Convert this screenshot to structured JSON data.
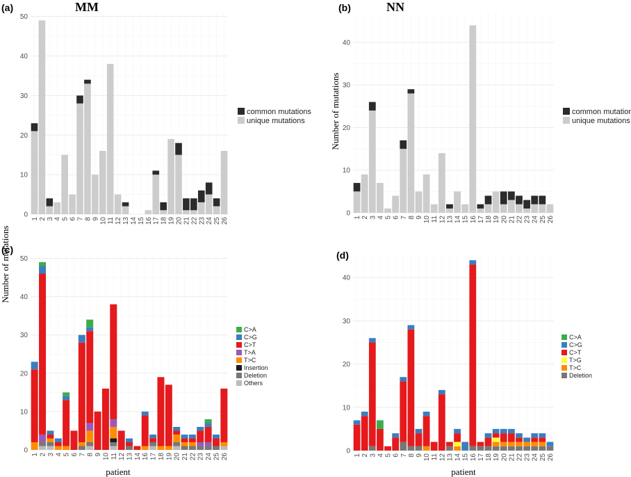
{
  "ylabel": "Number of mutations",
  "xlabel": "patient",
  "colors": {
    "common": "#2b2b2b",
    "unique": "#cccccc",
    "C>A": "#3aae49",
    "C>G": "#3b7ebf",
    "C>T": "#e41a1c",
    "T>A": "#9b59b6",
    "T>C": "#ff8c00",
    "T>G": "#ffff33",
    "Insertion": "#1a1a1a",
    "Deletion": "#777777",
    "Others": "#bbbbbb",
    "grid": "#ebebeb"
  },
  "chart_data": [
    {
      "panel": "(a)",
      "title": "MM",
      "type": "bar",
      "stacked": true,
      "categories": [
        "1",
        "2",
        "3",
        "4",
        "5",
        "6",
        "7",
        "8",
        "9",
        "10",
        "11",
        "12",
        "13",
        "14",
        "15",
        "16",
        "17",
        "18",
        "19",
        "20",
        "21",
        "22",
        "23",
        "24",
        "25",
        "26"
      ],
      "ylim": [
        0,
        51
      ],
      "yticks": [
        0,
        10,
        20,
        30,
        40,
        50
      ],
      "legend_position": "right",
      "series": [
        {
          "name": "unique mutations",
          "color_key": "unique",
          "values": [
            21,
            49,
            2,
            3,
            15,
            5,
            28,
            33,
            10,
            16,
            38,
            5,
            2,
            0,
            0,
            1,
            10,
            1,
            19,
            15,
            1,
            1,
            3,
            5,
            2,
            16
          ]
        },
        {
          "name": "common mutations",
          "color_key": "common",
          "values": [
            2,
            0,
            2,
            0,
            0,
            0,
            2,
            1,
            0,
            0,
            0,
            0,
            1,
            0,
            0,
            0,
            1,
            2,
            0,
            3,
            3,
            3,
            3,
            3,
            2,
            0
          ]
        }
      ]
    },
    {
      "panel": "(b)",
      "title": "NN",
      "type": "bar",
      "stacked": true,
      "categories": [
        "1",
        "2",
        "3",
        "4",
        "5",
        "6",
        "7",
        "8",
        "9",
        "10",
        "11",
        "12",
        "13",
        "14",
        "15",
        "16",
        "17",
        "18",
        "19",
        "20",
        "21",
        "22",
        "23",
        "24",
        "25",
        "26"
      ],
      "ylim": [
        0,
        47
      ],
      "yticks": [
        0,
        10,
        20,
        30,
        40
      ],
      "legend_position": "right",
      "series": [
        {
          "name": "unique mutations",
          "color_key": "unique",
          "values": [
            5,
            9,
            24,
            7,
            1,
            4,
            15,
            28,
            5,
            9,
            2,
            14,
            1,
            5,
            2,
            44,
            1,
            2,
            5,
            2,
            3,
            2,
            1,
            2,
            2,
            2
          ]
        },
        {
          "name": "common mutations",
          "color_key": "common",
          "values": [
            2,
            0,
            2,
            0,
            0,
            0,
            2,
            1,
            0,
            0,
            0,
            0,
            1,
            0,
            0,
            0,
            1,
            2,
            0,
            3,
            2,
            2,
            2,
            2,
            2,
            0
          ]
        }
      ]
    },
    {
      "panel": "(c)",
      "title": "",
      "type": "bar",
      "stacked": true,
      "categories": [
        "1",
        "2",
        "3",
        "4",
        "5",
        "6",
        "7",
        "8",
        "9",
        "10",
        "11",
        "12",
        "13",
        "14",
        "16",
        "17",
        "18",
        "19",
        "20",
        "21",
        "22",
        "23",
        "24",
        "25",
        "26"
      ],
      "ylim": [
        0,
        51
      ],
      "yticks": [
        0,
        10,
        20,
        30,
        40,
        50
      ],
      "legend_position": "right",
      "series": [
        {
          "name": "Others",
          "color_key": "Others",
          "values": [
            0,
            1,
            1,
            0,
            0,
            0,
            0,
            1,
            0,
            0,
            1,
            0,
            0,
            0,
            0,
            1,
            0,
            0,
            1,
            0,
            0,
            0,
            0,
            0,
            1
          ]
        },
        {
          "name": "Deletion",
          "color_key": "Deletion",
          "values": [
            0,
            1,
            1,
            0,
            0,
            0,
            1,
            1,
            0,
            0,
            1,
            0,
            1,
            0,
            0,
            1,
            0,
            0,
            1,
            1,
            1,
            1,
            1,
            1,
            0
          ]
        },
        {
          "name": "Insertion",
          "color_key": "Insertion",
          "values": [
            0,
            0,
            0,
            0,
            0,
            0,
            0,
            0,
            0,
            0,
            1,
            0,
            0,
            0,
            0,
            0,
            0,
            0,
            0,
            0,
            0,
            0,
            0,
            0,
            0
          ]
        },
        {
          "name": "T>C",
          "color_key": "T>C",
          "values": [
            2,
            0,
            1,
            1,
            1,
            0,
            1,
            3,
            0,
            0,
            3,
            0,
            0,
            0,
            1,
            0,
            1,
            1,
            2,
            1,
            1,
            0,
            0,
            0,
            1
          ]
        },
        {
          "name": "T>A",
          "color_key": "T>A",
          "values": [
            0,
            2,
            0,
            0,
            0,
            0,
            0,
            2,
            0,
            0,
            2,
            0,
            0,
            0,
            0,
            0,
            0,
            0,
            0,
            0,
            0,
            1,
            1,
            0,
            0
          ]
        },
        {
          "name": "C>T",
          "color_key": "C>T",
          "values": [
            19,
            42,
            1,
            1,
            12,
            5,
            26,
            24,
            10,
            16,
            30,
            5,
            1,
            1,
            8,
            1,
            18,
            16,
            1,
            1,
            1,
            3,
            4,
            2,
            14
          ]
        },
        {
          "name": "C>G",
          "color_key": "C>G",
          "values": [
            2,
            2,
            1,
            1,
            1,
            0,
            2,
            1,
            0,
            0,
            0,
            0,
            1,
            0,
            1,
            1,
            0,
            0,
            1,
            1,
            1,
            1,
            1,
            1,
            0
          ]
        },
        {
          "name": "C>A",
          "color_key": "C>A",
          "values": [
            0,
            1,
            0,
            0,
            1,
            0,
            0,
            2,
            0,
            0,
            0,
            0,
            0,
            0,
            0,
            0,
            0,
            0,
            0,
            0,
            0,
            0,
            1,
            0,
            0
          ]
        }
      ]
    },
    {
      "panel": "(d)",
      "title": "",
      "type": "bar",
      "stacked": true,
      "categories": [
        "1",
        "2",
        "3",
        "4",
        "5",
        "6",
        "7",
        "8",
        "9",
        "10",
        "11",
        "12",
        "13",
        "14",
        "15",
        "16",
        "17",
        "18",
        "19",
        "20",
        "21",
        "22",
        "23",
        "24",
        "25",
        "26"
      ],
      "ylim": [
        0,
        45
      ],
      "yticks": [
        0,
        10,
        20,
        30,
        40
      ],
      "legend_position": "right",
      "series": [
        {
          "name": "Deletion",
          "color_key": "Deletion",
          "values": [
            0,
            0,
            1,
            0,
            0,
            0,
            2,
            1,
            1,
            0,
            0,
            0,
            1,
            0,
            0,
            1,
            1,
            1,
            1,
            1,
            1,
            1,
            1,
            1,
            1,
            1
          ]
        },
        {
          "name": "T>C",
          "color_key": "T>C",
          "values": [
            0,
            0,
            0,
            0,
            0,
            0,
            0,
            0,
            0,
            1,
            0,
            0,
            0,
            1,
            0,
            0,
            0,
            0,
            1,
            1,
            1,
            1,
            1,
            1,
            1,
            0
          ]
        },
        {
          "name": "T>G",
          "color_key": "T>G",
          "values": [
            0,
            0,
            0,
            0,
            0,
            0,
            0,
            0,
            0,
            0,
            0,
            0,
            0,
            1,
            0,
            0,
            0,
            0,
            1,
            0,
            0,
            0,
            0,
            0,
            0,
            0
          ]
        },
        {
          "name": "C>T",
          "color_key": "C>T",
          "values": [
            6,
            8,
            24,
            5,
            1,
            3,
            14,
            27,
            3,
            7,
            2,
            13,
            1,
            2,
            0,
            42,
            1,
            2,
            1,
            2,
            2,
            1,
            0,
            1,
            1,
            0
          ]
        },
        {
          "name": "C>G",
          "color_key": "C>G",
          "values": [
            1,
            1,
            1,
            0,
            0,
            1,
            1,
            1,
            1,
            1,
            0,
            1,
            0,
            1,
            2,
            1,
            0,
            1,
            1,
            1,
            1,
            1,
            1,
            1,
            1,
            1
          ]
        },
        {
          "name": "C>A",
          "color_key": "C>A",
          "values": [
            0,
            0,
            0,
            2,
            0,
            0,
            0,
            0,
            0,
            0,
            0,
            0,
            0,
            0,
            0,
            0,
            0,
            0,
            0,
            0,
            0,
            0,
            0,
            0,
            0,
            0
          ]
        }
      ]
    }
  ]
}
